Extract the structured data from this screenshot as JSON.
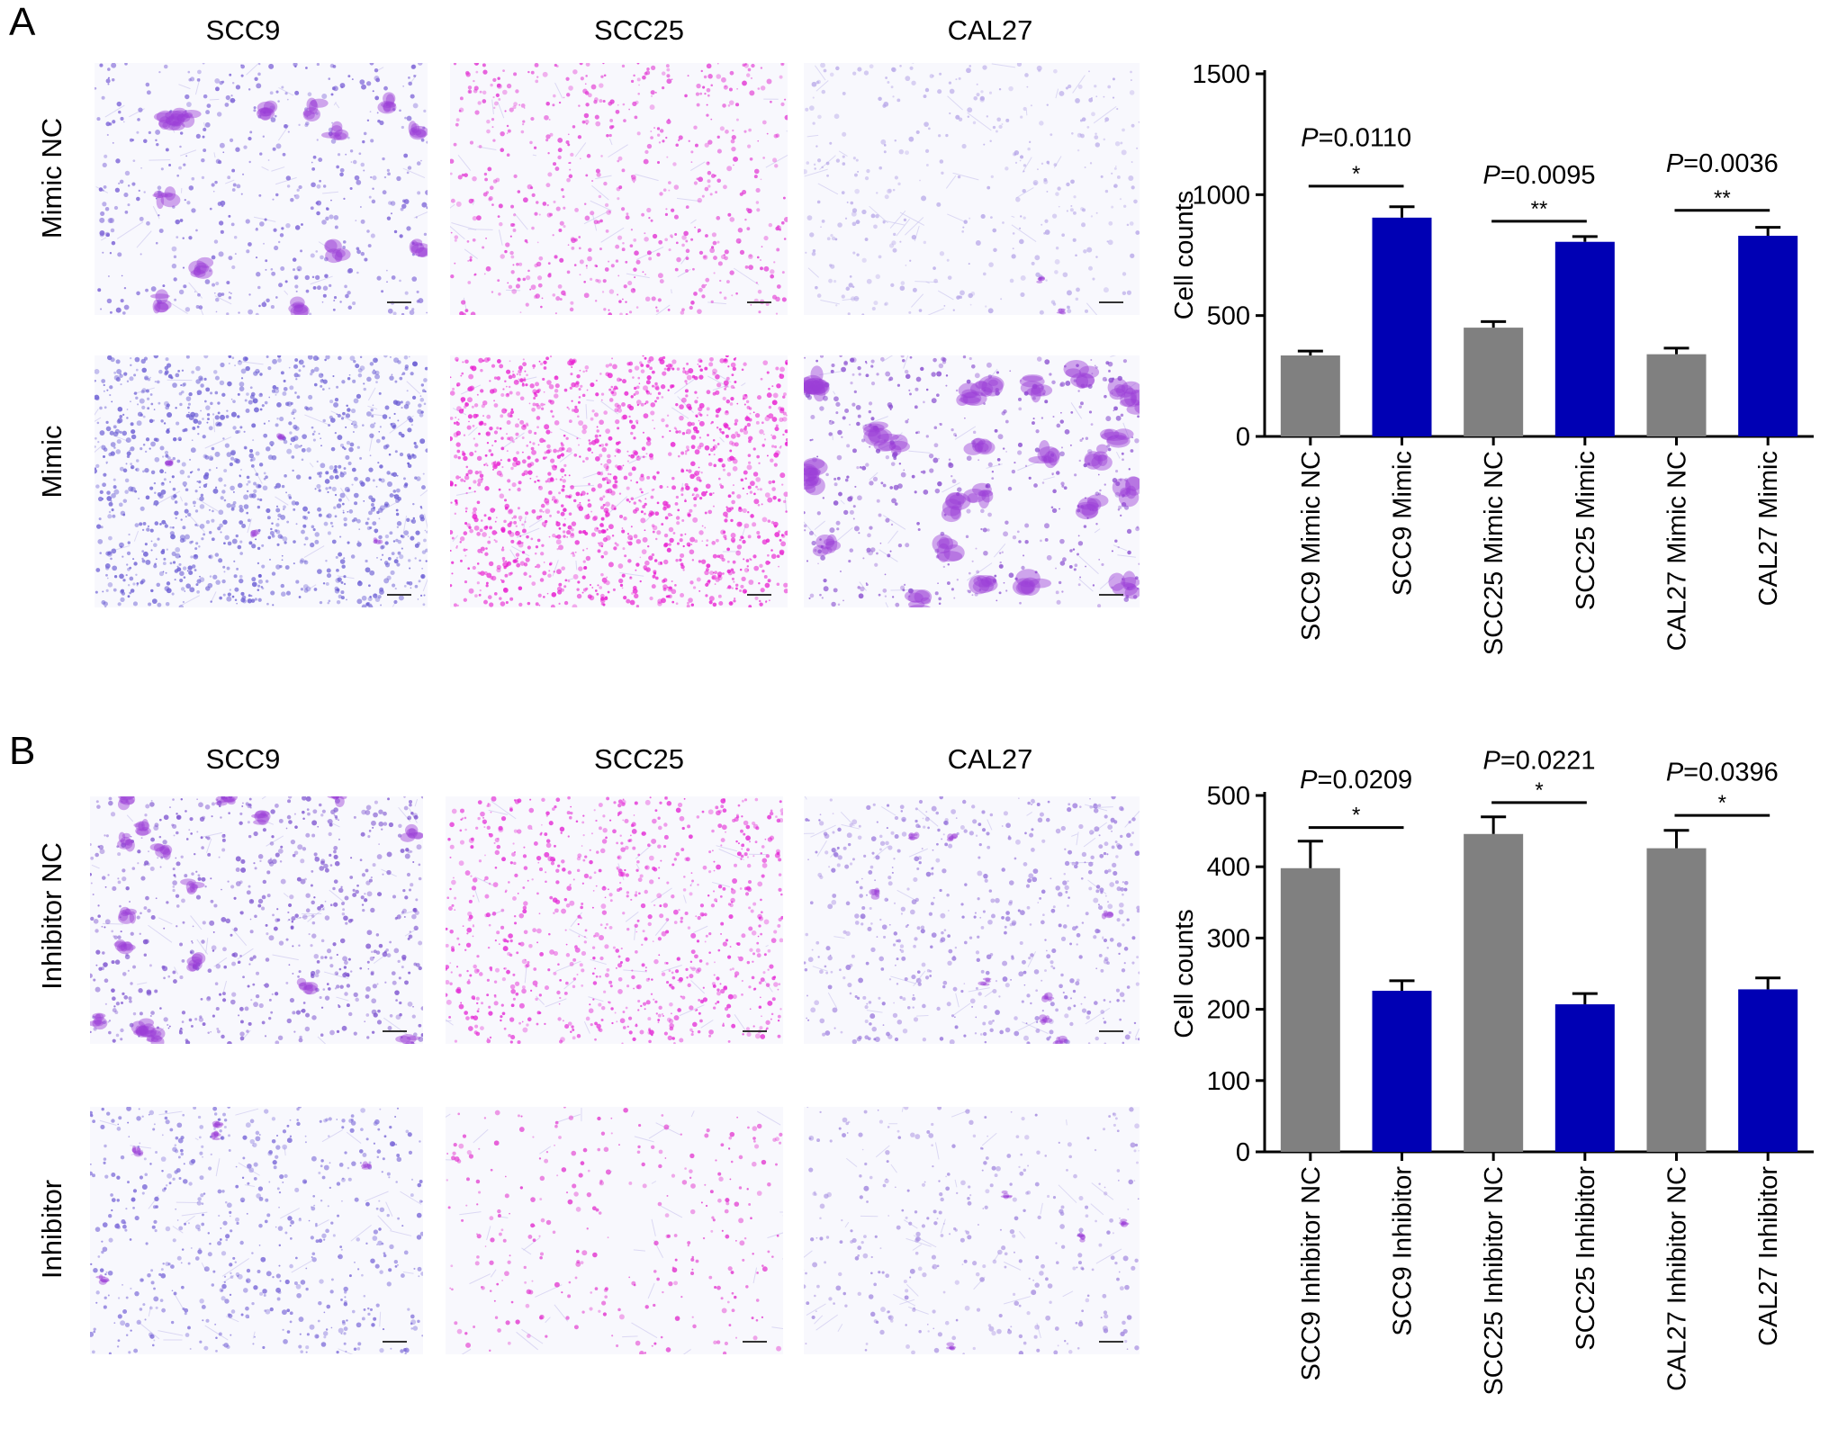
{
  "panels": [
    {
      "letter": "A",
      "columns": [
        "SCC9",
        "SCC25",
        "CAL27"
      ],
      "rows": [
        "Mimic NC",
        "Mimic"
      ]
    },
    {
      "letter": "B",
      "columns": [
        "SCC9",
        "SCC25",
        "CAL27"
      ],
      "rows": [
        "Inhibitor NC",
        "Inhibitor"
      ]
    }
  ],
  "colors": {
    "control": "#808080",
    "treated": "#0000b4",
    "stain_purple": "#8a4fd0",
    "stain_pink": "#e02ad8"
  },
  "chart_data": [
    {
      "type": "bar",
      "ylabel": "Cell counts",
      "ylim": [
        0,
        1500
      ],
      "yticks": [
        "0",
        "500",
        "1000",
        "1500"
      ],
      "categories": [
        "SCC9 Mimic NC",
        "SCC9 Mimic",
        "SCC25 Mimic NC",
        "SCC25 Mimic",
        "CAL27 Mimic NC",
        "CAL27 Mimic"
      ],
      "values": [
        335,
        905,
        450,
        805,
        340,
        830
      ],
      "errors": [
        18,
        45,
        25,
        22,
        25,
        35
      ],
      "bar_groups": [
        "control",
        "treated",
        "control",
        "treated",
        "control",
        "treated"
      ],
      "comparisons": [
        {
          "pair": [
            0,
            1
          ],
          "p_prefix": "P",
          "p_value": "=0.0110",
          "stars": "*",
          "line_y": 1035,
          "label_y": 1200
        },
        {
          "pair": [
            2,
            3
          ],
          "p_prefix": "P",
          "p_value": "=0.0095",
          "stars": "**",
          "line_y": 890,
          "label_y": 1045
        },
        {
          "pair": [
            4,
            5
          ],
          "p_prefix": "P",
          "p_value": "=0.0036",
          "stars": "**",
          "line_y": 935,
          "label_y": 1095
        }
      ]
    },
    {
      "type": "bar",
      "ylabel": "Cell counts",
      "ylim": [
        0,
        500
      ],
      "yticks": [
        "0",
        "100",
        "200",
        "300",
        "400",
        "500"
      ],
      "categories": [
        "SCC9 Inhibitor NC",
        "SCC9 Inhibitor",
        "SCC25 Inhibitor NC",
        "SCC25 Inhibitor",
        "CAL27 Inhibitor NC",
        "CAL27 Inhibitor"
      ],
      "values": [
        398,
        226,
        446,
        207,
        426,
        228
      ],
      "errors": [
        38,
        14,
        24,
        15,
        25,
        16
      ],
      "bar_groups": [
        "control",
        "treated",
        "control",
        "treated",
        "control",
        "treated"
      ],
      "comparisons": [
        {
          "pair": [
            0,
            1
          ],
          "p_prefix": "P",
          "p_value": "=0.0209",
          "stars": "*",
          "line_y": 455,
          "label_y": 510
        },
        {
          "pair": [
            2,
            3
          ],
          "p_prefix": "P",
          "p_value": "=0.0221",
          "stars": "*",
          "line_y": 490,
          "label_y": 537
        },
        {
          "pair": [
            4,
            5
          ],
          "p_prefix": "P",
          "p_value": "=0.0396",
          "stars": "*",
          "line_y": 472,
          "label_y": 521
        }
      ]
    }
  ]
}
